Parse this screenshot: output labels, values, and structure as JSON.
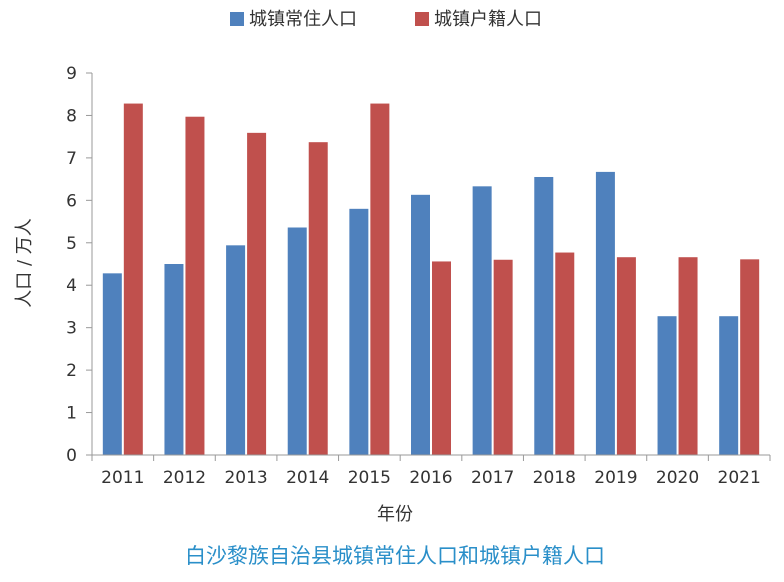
{
  "chart_data": {
    "type": "bar",
    "title": "白沙黎族自治县城镇常住人口和城镇户籍人口",
    "xlabel": "年份",
    "ylabel": "人口 / 万人",
    "ylim": [
      0,
      9
    ],
    "yticks": [
      "0",
      "1",
      "2",
      "3",
      "4",
      "5",
      "6",
      "7",
      "8",
      "9"
    ],
    "categories": [
      "2011",
      "2012",
      "2013",
      "2014",
      "2015",
      "2016",
      "2017",
      "2018",
      "2019",
      "2020",
      "2021"
    ],
    "series": [
      {
        "name": "城镇常住人口",
        "color": "#4f81bd",
        "values": [
          4.28,
          4.5,
          4.94,
          5.36,
          5.8,
          6.13,
          6.33,
          6.55,
          6.67,
          3.27,
          3.27
        ]
      },
      {
        "name": "城镇户籍人口",
        "color": "#c0504d",
        "values": [
          8.28,
          7.97,
          7.59,
          7.37,
          8.28,
          4.56,
          4.6,
          4.77,
          4.66,
          4.66,
          4.61
        ]
      }
    ],
    "grid": false,
    "legend": "top-center"
  }
}
